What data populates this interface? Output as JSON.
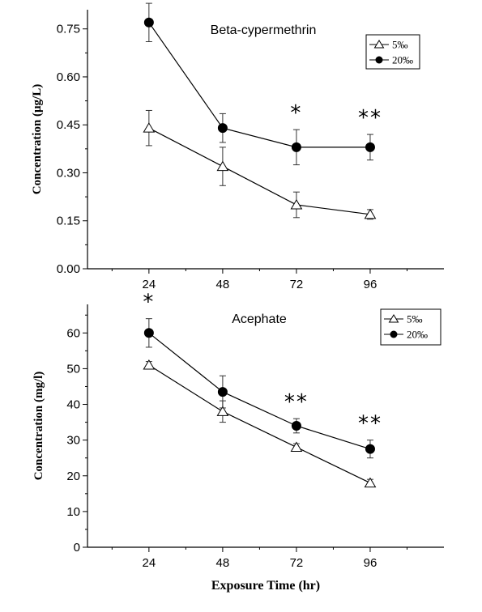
{
  "chart_data": [
    {
      "type": "line",
      "title": "Beta-cypermethrin",
      "xlabel": "",
      "ylabel": "Concentration (μg/L)",
      "x": [
        24,
        48,
        72,
        96
      ],
      "xticks": [
        "24",
        "48",
        "72",
        "96"
      ],
      "xlim": [
        4,
        120
      ],
      "ylim": [
        0,
        0.81
      ],
      "yticks": [
        "0.00",
        "0.15",
        "0.30",
        "0.45",
        "0.60",
        "0.75"
      ],
      "ytick_values": [
        0,
        0.15,
        0.3,
        0.45,
        0.6,
        0.75
      ],
      "legend_position": "top-right",
      "series": [
        {
          "name": "5‰",
          "marker": "open-triangle",
          "values": [
            0.44,
            0.32,
            0.2,
            0.17
          ],
          "errors": [
            0.055,
            0.06,
            0.04,
            0.015
          ]
        },
        {
          "name": "20‰",
          "marker": "filled-circle",
          "values": [
            0.77,
            0.44,
            0.38,
            0.38
          ],
          "errors": [
            0.06,
            0.045,
            0.055,
            0.04
          ]
        }
      ],
      "annotations": [
        {
          "x": 24,
          "text": "*"
        },
        {
          "x": 72,
          "text": "*"
        },
        {
          "x": 96,
          "text": "**"
        }
      ]
    },
    {
      "type": "line",
      "title": "Acephate",
      "xlabel": "Exposure Time (hr)",
      "ylabel": "Concentration (mg/l)",
      "x": [
        24,
        48,
        72,
        96
      ],
      "xticks": [
        "24",
        "48",
        "72",
        "96"
      ],
      "xlim": [
        4,
        120
      ],
      "ylim": [
        0,
        68
      ],
      "yticks": [
        "0",
        "10",
        "20",
        "30",
        "40",
        "50",
        "60"
      ],
      "ytick_values": [
        0,
        10,
        20,
        30,
        40,
        50,
        60
      ],
      "legend_position": "top-right",
      "series": [
        {
          "name": "5‰",
          "marker": "open-triangle",
          "values": [
            51,
            38,
            28,
            18
          ],
          "errors": [
            1.0,
            3.0,
            1.0,
            1.0
          ]
        },
        {
          "name": "20‰",
          "marker": "filled-circle",
          "values": [
            60,
            43.5,
            34,
            27.5
          ],
          "errors": [
            4.0,
            4.5,
            2.0,
            2.5
          ]
        }
      ],
      "annotations": [
        {
          "x": 24,
          "text": "*"
        },
        {
          "x": 72,
          "text": "**"
        },
        {
          "x": 96,
          "text": "**"
        }
      ]
    }
  ]
}
